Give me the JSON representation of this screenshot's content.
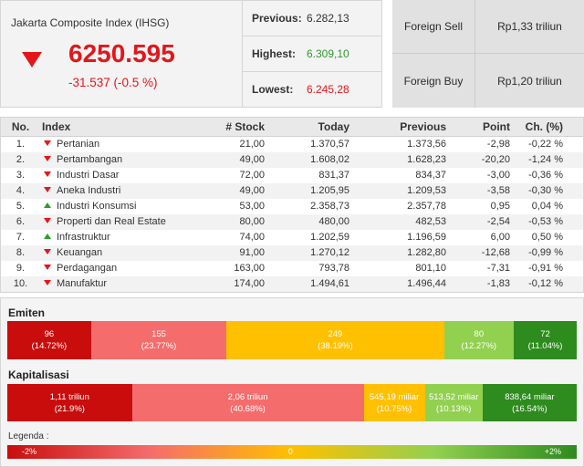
{
  "colors": {
    "down": "#e3161b",
    "up": "#2e9a2e"
  },
  "index": {
    "title": "Jakarta Composite Index (IHSG)",
    "icon": "triangle-down-icon",
    "value": "6250.595",
    "change": "-31.537 (-0.5 %)"
  },
  "stats": [
    {
      "label": "Previous:",
      "value": "6.282,13",
      "color": "#333333"
    },
    {
      "label": "Highest:",
      "value": "6.309,10",
      "color": "#2e9a2e"
    },
    {
      "label": "Lowest:",
      "value": "6.245,28",
      "color": "#e3161b"
    }
  ],
  "foreign": [
    {
      "label": "Foreign Sell",
      "value": "Rp1,33 triliun"
    },
    {
      "label": "Foreign Buy",
      "value": "Rp1,20 triliun"
    }
  ],
  "table": {
    "headers": {
      "no": "No.",
      "index": "Index",
      "stock": "# Stock",
      "today": "Today",
      "previous": "Previous",
      "point": "Point",
      "change": "Ch. (%)"
    },
    "rows": [
      {
        "no": "1.",
        "icon": "triangle-down-icon",
        "index": "Pertanian",
        "stock": "21,00",
        "today": "1.370,57",
        "previous": "1.373,56",
        "point": "-2,98",
        "change": "-0,22 %"
      },
      {
        "no": "2.",
        "icon": "triangle-down-icon",
        "index": "Pertambangan",
        "stock": "49,00",
        "today": "1.608,02",
        "previous": "1.628,23",
        "point": "-20,20",
        "change": "-1,24 %"
      },
      {
        "no": "3.",
        "icon": "triangle-down-icon",
        "index": "Industri Dasar",
        "stock": "72,00",
        "today": "831,37",
        "previous": "834,37",
        "point": "-3,00",
        "change": "-0,36 %"
      },
      {
        "no": "4.",
        "icon": "triangle-down-icon",
        "index": "Aneka Industri",
        "stock": "49,00",
        "today": "1.205,95",
        "previous": "1.209,53",
        "point": "-3,58",
        "change": "-0,30 %"
      },
      {
        "no": "5.",
        "icon": "triangle-up-icon",
        "index": "Industri Konsumsi",
        "stock": "53,00",
        "today": "2.358,73",
        "previous": "2.357,78",
        "point": "0,95",
        "change": "0,04 %"
      },
      {
        "no": "6.",
        "icon": "triangle-down-icon",
        "index": "Properti dan Real Estate",
        "stock": "80,00",
        "today": "480,00",
        "previous": "482,53",
        "point": "-2,54",
        "change": "-0,53 %"
      },
      {
        "no": "7.",
        "icon": "triangle-up-icon",
        "index": "Infrastruktur",
        "stock": "74,00",
        "today": "1.202,59",
        "previous": "1.196,59",
        "point": "6,00",
        "change": "0,50 %"
      },
      {
        "no": "8.",
        "icon": "triangle-down-icon",
        "index": "Keuangan",
        "stock": "91,00",
        "today": "1.270,12",
        "previous": "1.282,80",
        "point": "-12,68",
        "change": "-0,99 %"
      },
      {
        "no": "9.",
        "icon": "triangle-down-icon",
        "index": "Perdagangan",
        "stock": "163,00",
        "today": "793,78",
        "previous": "801,10",
        "point": "-7,31",
        "change": "-0,91 %"
      },
      {
        "no": "10.",
        "icon": "triangle-down-icon",
        "index": "Manufaktur",
        "stock": "174,00",
        "today": "1.494,61",
        "previous": "1.496,44",
        "point": "-1,83",
        "change": "-0,12 %"
      }
    ]
  },
  "emiten": {
    "label": "Emiten",
    "segments": [
      {
        "value": "96",
        "percent_label": "(14.72%)",
        "share": 14.72,
        "color": "#c90d0d"
      },
      {
        "value": "155",
        "percent_label": "(23.77%)",
        "share": 23.77,
        "color": "#f56c6c"
      },
      {
        "value": "249",
        "percent_label": "(38.19%)",
        "share": 38.19,
        "color": "#ffc000"
      },
      {
        "value": "80",
        "percent_label": "(12.27%)",
        "share": 12.27,
        "color": "#92d050"
      },
      {
        "value": "72",
        "percent_label": "(11.04%)",
        "share": 11.04,
        "color": "#2e8b1e"
      }
    ]
  },
  "kapitalisasi": {
    "label": "Kapitalisasi",
    "segments": [
      {
        "value": "1,11 triliun",
        "percent_label": "(21.9%)",
        "share": 21.9,
        "color": "#c90d0d"
      },
      {
        "value": "2,06 triliun",
        "percent_label": "(40.68%)",
        "share": 40.68,
        "color": "#f56c6c"
      },
      {
        "value": "545,19 miliar",
        "percent_label": "(10.75%)",
        "share": 10.75,
        "color": "#ffc000"
      },
      {
        "value": "513,52 miliar",
        "percent_label": "(10.13%)",
        "share": 10.13,
        "color": "#92d050"
      },
      {
        "value": "838,64 miliar",
        "percent_label": "(16.54%)",
        "share": 16.54,
        "color": "#2e8b1e"
      }
    ]
  },
  "legend": {
    "label": "Legenda :",
    "min_label": "-2%",
    "mid_label": "0",
    "max_label": "+2%",
    "gradient": [
      "#c90d0d",
      "#f56c6c",
      "#ffc000",
      "#92d050",
      "#2e8b1e"
    ]
  }
}
